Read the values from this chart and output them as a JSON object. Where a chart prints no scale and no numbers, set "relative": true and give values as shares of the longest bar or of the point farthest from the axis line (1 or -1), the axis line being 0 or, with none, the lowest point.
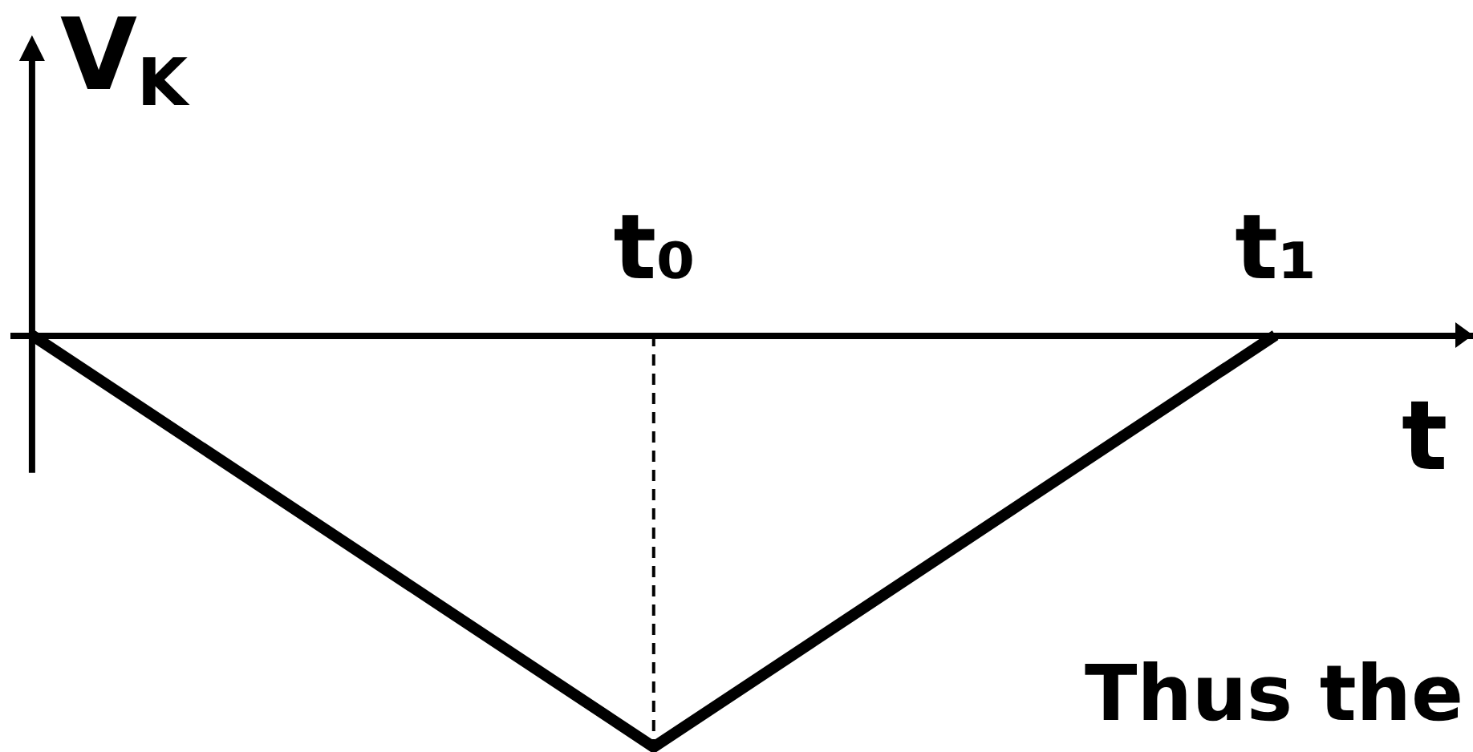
{
  "chart_data": {
    "type": "line",
    "ylabel": "V$_{K}$",
    "xlabel": "t",
    "relative": true,
    "categories": [
      null,
      "t₀",
      "t₁"
    ],
    "series": [
      {
        "color": "#000000",
        "values": [
          0,
          -1,
          0
        ]
      }
    ],
    "ref_lines": [
      {
        "axis": "x",
        "value": "t₀",
        "color": "#000000",
        "line_style": "dashed"
      }
    ],
    "annotations": [
      "Thus the"
    ]
  }
}
